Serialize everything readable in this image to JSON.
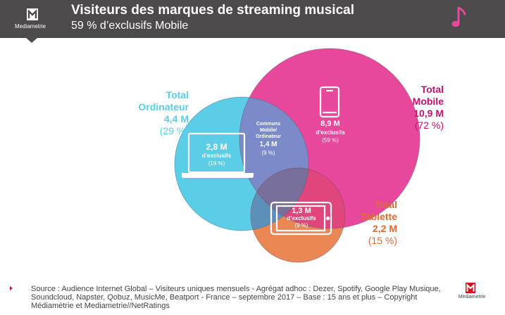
{
  "header": {
    "brand": "Mediametrie",
    "title": "Visiteurs des marques de streaming musical",
    "subtitle": "59 % d’exclusifs Mobile"
  },
  "icons": {
    "header_logo": "mediametrie-logo-icon",
    "music": "music-note-icon",
    "laptop": "laptop-icon",
    "smartphone": "smartphone-icon",
    "tablet": "tablet-icon"
  },
  "chart_data": {
    "type": "venn",
    "sets": [
      {
        "key": "ordinateur",
        "title_line1": "Total",
        "title_line2": "Ordinateur",
        "total": "4,4 M",
        "share": "(29 %)",
        "color": "#5bcde6"
      },
      {
        "key": "mobile",
        "title_line1": "Total",
        "title_line2": "Mobile",
        "total": "10,9 M",
        "share": "(72 %)",
        "color": "#e8489b"
      },
      {
        "key": "tablette",
        "title_line1": "Total",
        "title_line2": "Tablette",
        "total": "2,2 M",
        "share": "(15 %)",
        "color": "#eb8755"
      }
    ],
    "regions": {
      "ordinateur_exclusive": {
        "value": "2,8 M",
        "label": "d’exclusifs",
        "share": "(19 %)"
      },
      "mobile_exclusive": {
        "value": "8,9 M",
        "label": "d’exclusifs",
        "share": "(59 %)"
      },
      "tablette_exclusive": {
        "value": "1,3 M",
        "label": "d’exclusifs",
        "share": "(9 %)"
      },
      "mobile_ordinateur_common": {
        "title_line1": "Communs",
        "title_line2": "Mobile/",
        "title_line3": "Ordinateur",
        "value": "1,4 M",
        "share": "(9 %)"
      }
    },
    "values_millions": {
      "ordinateur": 4.4,
      "mobile": 10.9,
      "tablette": 2.2,
      "ordinateur_exclusive": 2.8,
      "mobile_exclusive": 8.9,
      "tablette_exclusive": 1.3,
      "mobile_ordinateur_common": 1.4
    },
    "colors": {
      "overlap_mobile_ordinateur": "#7b8ac8",
      "overlap_mobile_tablette": "#e0457c",
      "overlap_all": "#7a6e9a"
    }
  },
  "footer": {
    "source": "Source : Audience Internet Global – Visiteurs uniques mensuels - Agrégat adhoc : Dezer, Spotify, Google Play Musique, Soundcloud,  Napster, Qobuz, MusicMe, Beatport - France – septembre 2017 – Base : 15 ans et plus – Copyright  Médiamétrie et Mediametrie//NetRatings",
    "brand": "Mediametrie"
  }
}
